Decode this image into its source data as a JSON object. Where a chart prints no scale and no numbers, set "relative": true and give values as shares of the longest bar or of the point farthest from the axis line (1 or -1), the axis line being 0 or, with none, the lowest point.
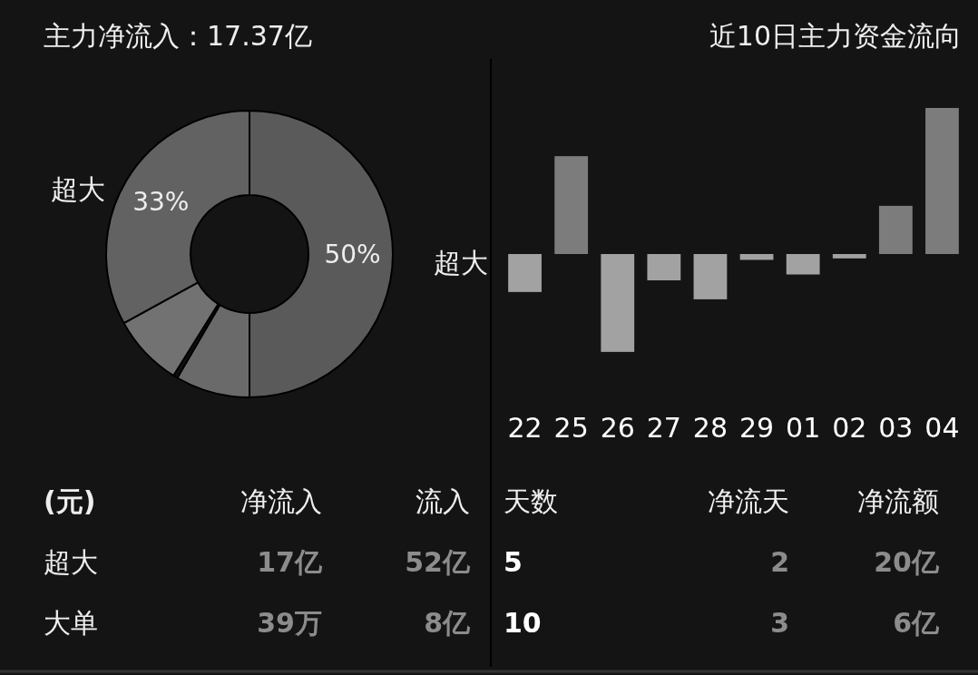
{
  "chart_data": [
    {
      "type": "donut",
      "title": "主力净流入：17.37亿",
      "categories": [
        null,
        null,
        null,
        null,
        "超大"
      ],
      "values": [
        50,
        8.4,
        0.5,
        8.1,
        33
      ],
      "colors": [
        "#5a5a5a",
        "#6a6a6a",
        "#111111",
        "#727272",
        "#626262"
      ],
      "value_labels": [
        "50%",
        null,
        null,
        null,
        "33%"
      ]
    },
    {
      "type": "bar",
      "title": "近10日主力资金流向",
      "ylabel": "超大",
      "relative": true,
      "categories": [
        "22",
        "25",
        "26",
        "27",
        "28",
        "29",
        "01",
        "02",
        "03",
        "04"
      ],
      "values": [
        -0.26,
        0.67,
        -0.67,
        -0.18,
        -0.31,
        -0.04,
        -0.14,
        -0.03,
        0.33,
        1
      ],
      "colors": [
        "#a2a2a2",
        "#7c7c7c",
        "#a2a2a2",
        "#a2a2a2",
        "#a2a2a2",
        "#a2a2a2",
        "#a2a2a2",
        "#a2a2a2",
        "#7c7c7c",
        "#7c7c7c"
      ]
    },
    {
      "type": "other",
      "annotations": [
        "(元)",
        "净流入",
        "流入",
        "天数",
        "净流天",
        "净流额",
        "超大",
        "17亿",
        "52亿",
        "5",
        "2",
        "20亿",
        "大单",
        "39万",
        "8亿",
        "10",
        "3",
        "6亿"
      ]
    }
  ]
}
